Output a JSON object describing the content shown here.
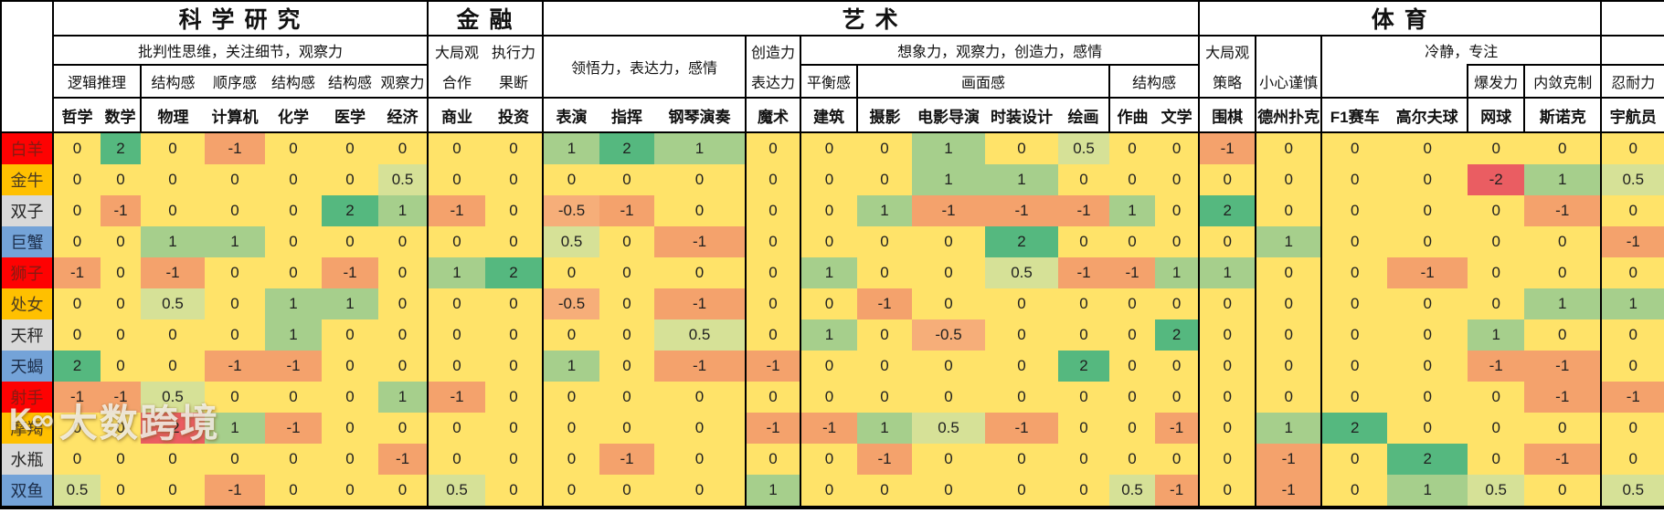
{
  "header": {
    "groups": [
      {
        "label": "科 学 研 究"
      },
      {
        "label": "金 融"
      },
      {
        "label": "艺 术"
      },
      {
        "label": "体 育"
      },
      {
        "label": ""
      }
    ],
    "sub": {
      "science": "批判性思维，关注细节，观察力",
      "finance_r2": [
        "大局观",
        "执行力"
      ],
      "finance_r3": [
        "合作",
        "果断"
      ],
      "performance": "领悟力，表达力，感情",
      "magic_r2": "创造力",
      "magic_r3": "表达力",
      "imagination": "想象力，观察力，创造力，感情",
      "go_r2": "大局观",
      "go_r3": "策略",
      "poker": "小心谨慎",
      "calm": "冷静，专注",
      "science_traits": [
        "逻辑推理",
        "结构感",
        "顺序感",
        "结构感",
        "结构感",
        "观察力"
      ],
      "balance": "平衡感",
      "picture": "画面感",
      "structure": "结构感",
      "burst": "爆发力",
      "restraint": "内敛克制",
      "endurance": "忍耐力"
    },
    "columns": [
      "哲学",
      "数学",
      "物理",
      "计算机",
      "化学",
      "医学",
      "经济",
      "商业",
      "投资",
      "表演",
      "指挥",
      "钢琴演奏",
      "魔术",
      "建筑",
      "摄影",
      "电影导演",
      "时装设计",
      "绘画",
      "作曲",
      "文学",
      "围棋",
      "德州扑克",
      "F1赛车",
      "高尔夫球",
      "网球",
      "斯诺克",
      "宇航员"
    ]
  },
  "body": {
    "rows": [
      {
        "name": "白羊",
        "element": "fire",
        "values": [
          0,
          2,
          0,
          -1,
          0,
          0,
          0,
          0,
          0,
          1,
          2,
          1,
          0,
          0,
          0,
          1,
          0,
          0.5,
          0,
          0,
          -1,
          0,
          0,
          0,
          0,
          0,
          0
        ]
      },
      {
        "name": "金牛",
        "element": "earth",
        "values": [
          0,
          0,
          0,
          0,
          0,
          0,
          0.5,
          0,
          0,
          0,
          0,
          0,
          0,
          0,
          0,
          1,
          1,
          0,
          0,
          0,
          0,
          0,
          0,
          0,
          -2,
          1,
          0.5
        ]
      },
      {
        "name": "双子",
        "element": "air",
        "values": [
          0,
          -1,
          0,
          0,
          0,
          2,
          1,
          -1,
          0,
          -0.5,
          -1,
          0,
          0,
          0,
          1,
          -1,
          -1,
          -1,
          1,
          0,
          2,
          0,
          0,
          0,
          0,
          -1,
          0
        ]
      },
      {
        "name": "巨蟹",
        "element": "water",
        "values": [
          0,
          0,
          1,
          1,
          0,
          0,
          0,
          0,
          0,
          0.5,
          0,
          -1,
          0,
          0,
          0,
          0,
          2,
          0,
          0,
          0,
          0,
          1,
          0,
          0,
          0,
          0,
          -1
        ]
      },
      {
        "name": "狮子",
        "element": "fire",
        "values": [
          -1,
          0,
          -1,
          0,
          0,
          -1,
          0,
          1,
          2,
          0,
          0,
          0,
          0,
          1,
          0,
          0,
          0.5,
          -1,
          -1,
          1,
          1,
          0,
          0,
          -1,
          0,
          0,
          0
        ]
      },
      {
        "name": "处女",
        "element": "earth",
        "values": [
          0,
          0,
          0.5,
          0,
          1,
          1,
          0,
          0,
          0,
          -0.5,
          0,
          -1,
          0,
          0,
          -1,
          0,
          0,
          0,
          0,
          0,
          0,
          0,
          0,
          0,
          0,
          1,
          1
        ]
      },
      {
        "name": "天秤",
        "element": "air",
        "values": [
          0,
          0,
          0,
          0,
          1,
          0,
          0,
          0,
          0,
          0,
          0,
          0.5,
          0,
          1,
          0,
          -0.5,
          0,
          0,
          0,
          2,
          0,
          0,
          0,
          0,
          1,
          0,
          0
        ]
      },
      {
        "name": "天蝎",
        "element": "water",
        "values": [
          2,
          0,
          0,
          -1,
          -1,
          0,
          0,
          0,
          0,
          1,
          0,
          -1,
          -1,
          0,
          0,
          0,
          0,
          2,
          0,
          0,
          0,
          0,
          0,
          0,
          -1,
          -1,
          0
        ]
      },
      {
        "name": "射手",
        "element": "fire",
        "values": [
          -1,
          -1,
          0.5,
          0,
          0,
          0,
          1,
          -1,
          0,
          0,
          0,
          0,
          0,
          0,
          0,
          0,
          0,
          0,
          0,
          0,
          0,
          0,
          0,
          0,
          0,
          -1,
          -1
        ]
      },
      {
        "name": "摩羯",
        "element": "earth",
        "values": [
          0,
          0,
          -2,
          1,
          -1,
          0,
          0,
          0,
          0,
          0,
          0,
          0,
          -1,
          -1,
          1,
          0.5,
          -1,
          0,
          0,
          -1,
          0,
          1,
          2,
          0,
          0,
          0,
          0
        ]
      },
      {
        "name": "水瓶",
        "element": "air",
        "values": [
          0,
          0,
          0,
          0,
          0,
          0,
          -1,
          0,
          0,
          0,
          -1,
          0,
          0,
          0,
          -1,
          0,
          0,
          0,
          0,
          0,
          0,
          -1,
          0,
          2,
          0,
          -1,
          0
        ]
      },
      {
        "name": "双鱼",
        "element": "water",
        "values": [
          0.5,
          0,
          0,
          -1,
          0,
          0,
          0,
          0.5,
          0,
          0,
          0,
          0,
          1,
          0,
          0,
          0,
          0,
          0,
          0.5,
          -1,
          0,
          -1,
          0,
          1,
          0.5,
          0,
          0.5
        ]
      }
    ]
  },
  "legend_colors": {
    "zero": "#FFE369",
    "plus_half": "#D6E197",
    "plus_one": "#A6CF8C",
    "plus_two": "#55B87F",
    "minus_half": "#F6AE79",
    "minus_one": "#F4A26C",
    "minus_two": "#EA5D62",
    "fire": "#FE0202",
    "earth": "#FFC000",
    "air": "#D9D9D9",
    "water": "#74A3D8"
  },
  "watermark": {
    "logo": "K∞",
    "text": "大数跨境"
  }
}
